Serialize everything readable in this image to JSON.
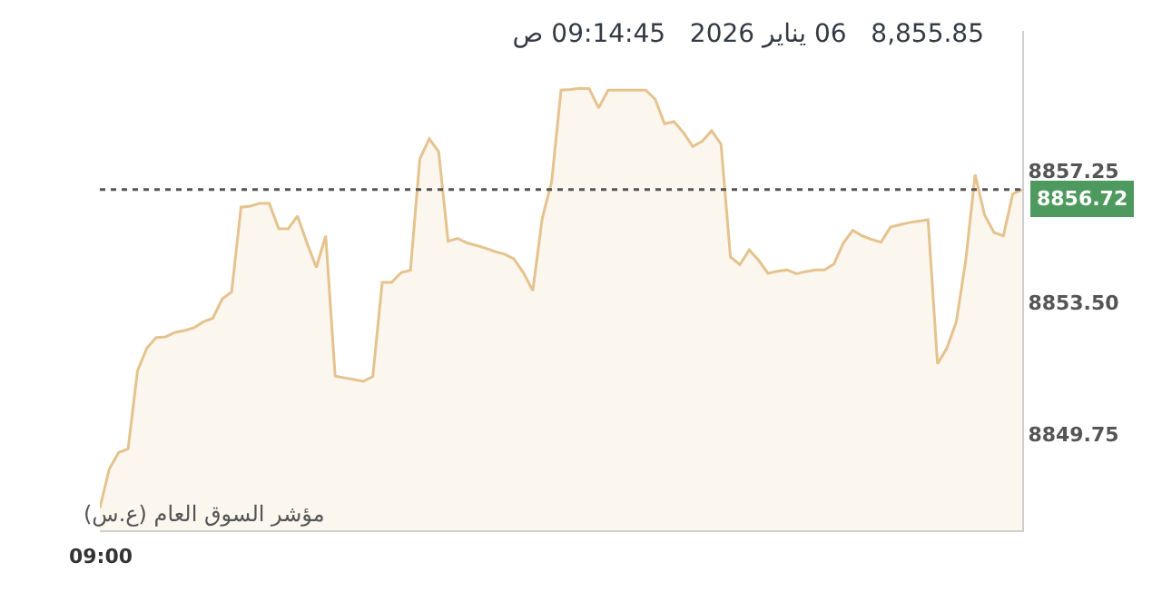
{
  "chart_data": {
    "type": "area",
    "title": "8,855.85   06 يناير 2026   09:14:45 ص",
    "annotations": [
      "09:00"
    ],
    "categories": [
      null,
      null,
      null,
      null,
      null,
      null,
      null,
      null,
      null,
      null,
      null,
      null,
      null,
      null,
      null,
      null,
      null,
      null,
      null,
      null,
      null,
      null,
      null,
      null,
      null,
      null,
      null,
      null,
      null,
      null,
      null,
      null,
      null,
      null,
      null,
      null,
      null,
      null,
      null,
      null,
      null,
      null,
      null,
      null,
      null,
      null,
      null,
      null,
      null,
      null,
      null,
      null,
      null,
      null,
      null,
      null,
      null,
      null,
      null,
      null,
      null,
      null,
      null,
      null,
      null,
      null,
      null,
      null,
      null,
      null,
      null,
      null,
      null,
      null,
      null,
      null,
      null,
      null,
      null,
      null,
      null,
      null,
      null,
      null,
      null,
      null,
      null,
      null,
      null,
      null,
      null,
      null,
      null,
      null,
      null,
      null,
      null,
      null,
      null
    ],
    "series": [
      {
        "name": "مؤشر السوق العام (ع.س)",
        "color": "#e5c38e",
        "values": [
          8847.64,
          8848.75,
          8849.22,
          8849.32,
          8851.55,
          8852.2,
          8852.5,
          8852.52,
          8852.65,
          8852.7,
          8852.78,
          8852.95,
          8853.05,
          8853.6,
          8853.8,
          8856.22,
          8856.25,
          8856.33,
          8856.33,
          8855.61,
          8855.6,
          8855.97,
          8855.2,
          8854.5,
          8855.4,
          8851.4,
          8851.35,
          8851.3,
          8851.25,
          8851.39,
          8854.07,
          8854.07,
          8854.35,
          8854.42,
          8857.6,
          8858.17,
          8857.8,
          8855.25,
          8855.33,
          8855.2,
          8855.13,
          8855.05,
          8854.95,
          8854.88,
          8854.74,
          8854.35,
          8853.84,
          8855.9,
          8856.94,
          8859.56,
          8859.58,
          8859.61,
          8859.6,
          8859.05,
          8859.56,
          8859.56,
          8859.56,
          8859.56,
          8859.56,
          8859.3,
          8858.6,
          8858.66,
          8858.35,
          8857.95,
          8858.1,
          8858.4,
          8858.02,
          8854.8,
          8854.58,
          8855.0,
          8854.7,
          8854.33,
          8854.39,
          8854.43,
          8854.32,
          8854.38,
          8854.43,
          8854.43,
          8854.6,
          8855.2,
          8855.56,
          8855.4,
          8855.3,
          8855.22,
          8855.65,
          8855.72,
          8855.78,
          8855.82,
          8855.86,
          8851.75,
          8852.2,
          8852.95,
          8854.7,
          8857.15,
          8856.0,
          8855.5,
          8855.4,
          8856.6,
          8856.72
        ]
      }
    ],
    "ylim": [
      8847,
      8861.25
    ],
    "yticks": [
      {
        "value": 8849.75,
        "label": "8849.75"
      },
      {
        "value": 8853.5,
        "label": "8853.50"
      },
      {
        "value": 8857.25,
        "label": "8857.25"
      }
    ],
    "ref_lines": [
      {
        "axis": "y",
        "value": 8856.72,
        "label": "8856.72",
        "color": "#555555",
        "line_style": "dotted"
      }
    ],
    "grid": false,
    "marker": "none",
    "line_style": "solid"
  }
}
